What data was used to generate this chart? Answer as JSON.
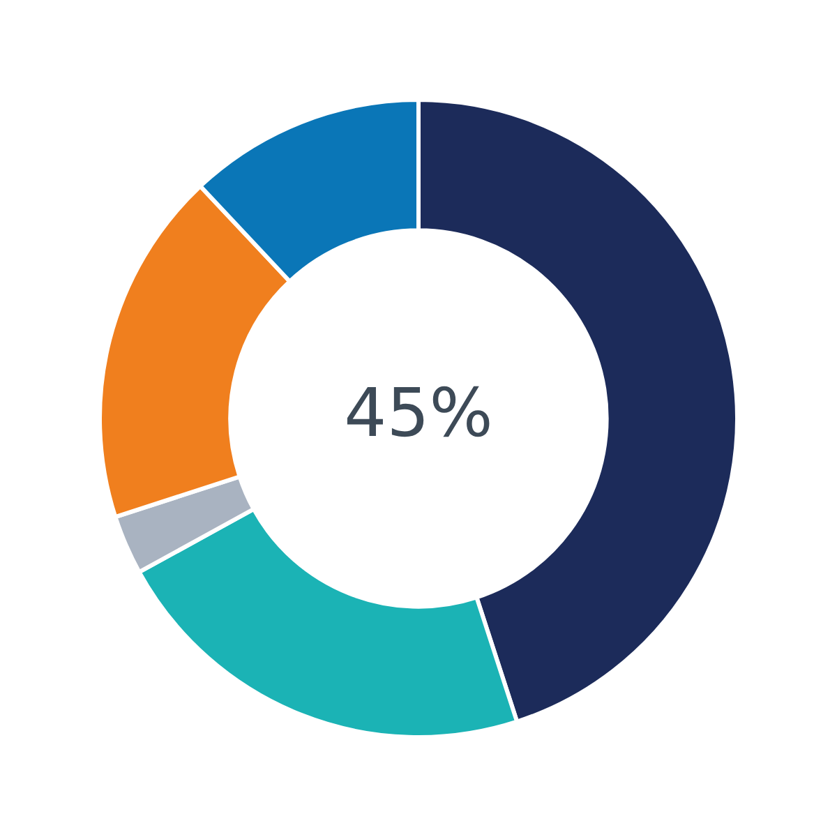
{
  "chart_data": {
    "type": "donut",
    "categories": [
      null,
      null,
      null,
      null,
      null
    ],
    "values": [
      45,
      22,
      3,
      18,
      12
    ],
    "colors": [
      "#1c2b5a",
      "#1bb3b5",
      "#a9b3c1",
      "#f07f1e",
      "#0a76b7"
    ],
    "annotations": [
      "45%"
    ],
    "legend": false
  }
}
